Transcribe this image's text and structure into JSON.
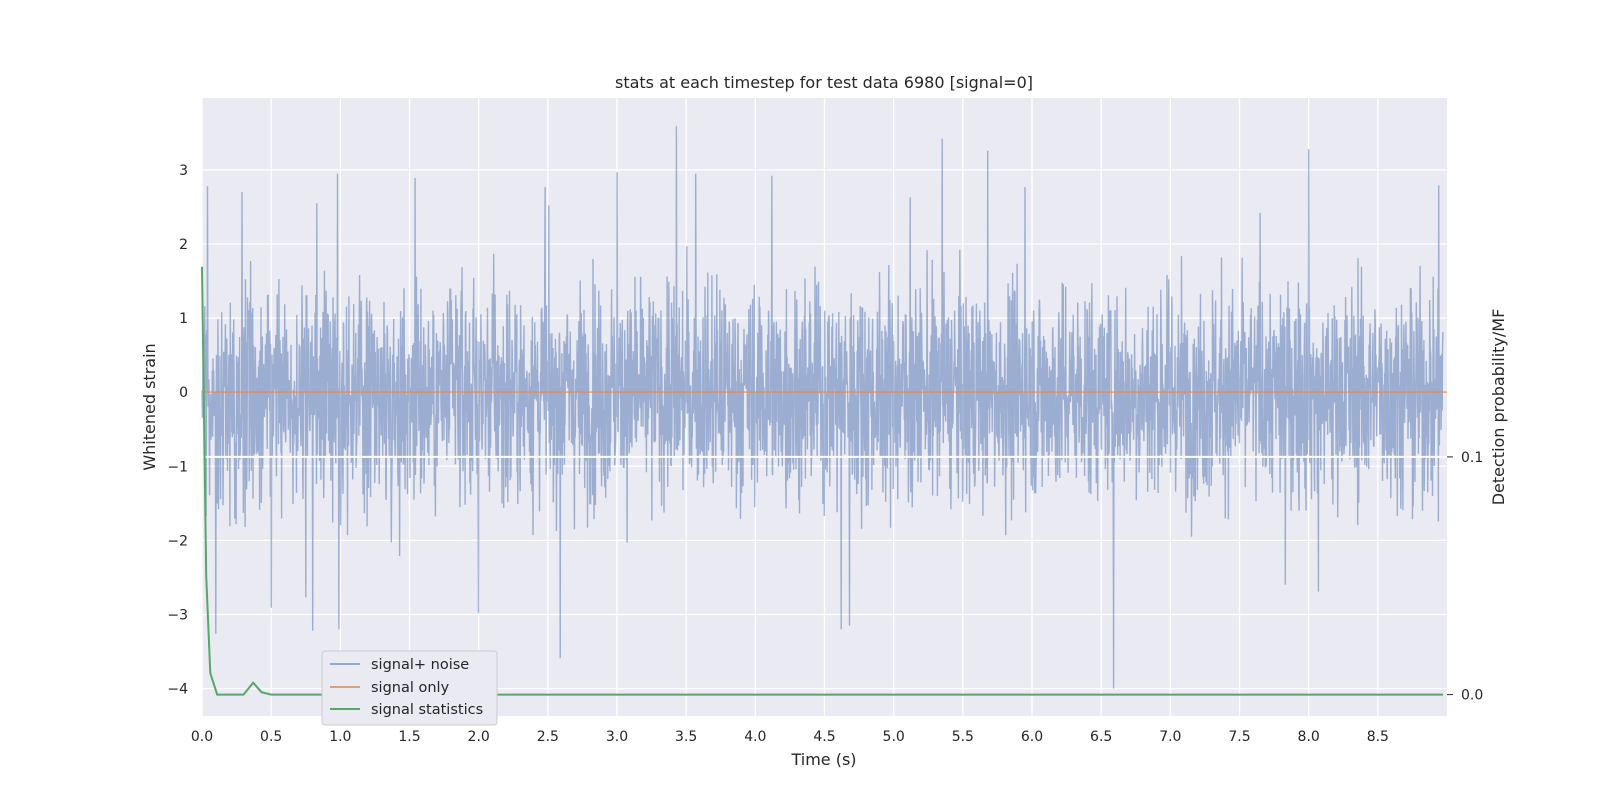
{
  "chart_data": {
    "type": "line",
    "title": "stats at each timestep for test data 6980 [signal=0]",
    "xlabel": "Time (s)",
    "ylabel": "Whitened strain",
    "ylabel_right": "Detection probability/MF",
    "xlim": [
      0,
      9.0
    ],
    "ylim": [
      -4.37,
      3.97
    ],
    "ylim_right": [
      -0.009,
      0.251
    ],
    "xticks": [
      "0.0",
      "0.5",
      "1.0",
      "1.5",
      "2.0",
      "2.5",
      "3.0",
      "3.5",
      "4.0",
      "4.5",
      "5.0",
      "5.5",
      "6.0",
      "6.5",
      "7.0",
      "7.5",
      "8.0",
      "8.5"
    ],
    "xtick_values": [
      0,
      0.5,
      1,
      1.5,
      2,
      2.5,
      3,
      3.5,
      4,
      4.5,
      5,
      5.5,
      6,
      6.5,
      7,
      7.5,
      8,
      8.5
    ],
    "yticks": [
      "3",
      "2",
      "1",
      "0",
      "−1",
      "−2",
      "−3",
      "−4"
    ],
    "ytick_values": [
      3,
      2,
      1,
      0,
      -1,
      -2,
      -3,
      -4
    ],
    "yticks_right": [
      "0.1",
      "0.0"
    ],
    "ytick_values_right": [
      0.1,
      0.0
    ],
    "grid": true,
    "legend_position": "lower-left",
    "series": [
      {
        "name": "signal+ noise",
        "color": "#4c72b0",
        "axis": "left",
        "style": "dense-noise",
        "peaks": [
          [
            0.04,
            2.78
          ],
          [
            0.29,
            2.7
          ],
          [
            0.83,
            2.55
          ],
          [
            0.98,
            2.95
          ],
          [
            1.54,
            2.89
          ],
          [
            2.48,
            2.77
          ],
          [
            3.0,
            2.97
          ],
          [
            3.43,
            3.59
          ],
          [
            3.57,
            2.95
          ],
          [
            4.12,
            2.92
          ],
          [
            5.12,
            2.63
          ],
          [
            5.35,
            3.42
          ],
          [
            5.68,
            3.26
          ],
          [
            5.95,
            2.77
          ],
          [
            7.65,
            2.42
          ],
          [
            8.0,
            3.28
          ],
          [
            8.94,
            2.79
          ]
        ],
        "troughs": [
          [
            0.1,
            -3.26
          ],
          [
            0.5,
            -2.91
          ],
          [
            0.75,
            -2.77
          ],
          [
            0.8,
            -3.22
          ],
          [
            0.99,
            -3.2
          ],
          [
            2.0,
            -2.98
          ],
          [
            2.59,
            -3.59
          ],
          [
            4.62,
            -3.2
          ],
          [
            4.68,
            -3.15
          ],
          [
            6.59,
            -4.0
          ],
          [
            7.83,
            -2.6
          ],
          [
            8.07,
            -2.69
          ]
        ]
      },
      {
        "name": "signal only",
        "color": "#dd8452",
        "axis": "left",
        "x": [
          0,
          9.0
        ],
        "y": [
          0,
          0
        ]
      },
      {
        "name": "signal statistics",
        "color": "#55a868",
        "axis": "right",
        "x": [
          0,
          0.03,
          0.06,
          0.11,
          0.2,
          0.3,
          0.37,
          0.43,
          0.5,
          1.0,
          9.0
        ],
        "y": [
          0.18,
          0.05,
          0.009,
          0.0,
          0.0,
          0.0,
          0.005,
          0.001,
          0.0,
          0.0,
          0.0
        ]
      },
      {
        "name": "",
        "color": "#ffffff",
        "axis": "right",
        "x": [
          0,
          9.0
        ],
        "y": [
          0.1,
          0.1
        ]
      }
    ]
  }
}
